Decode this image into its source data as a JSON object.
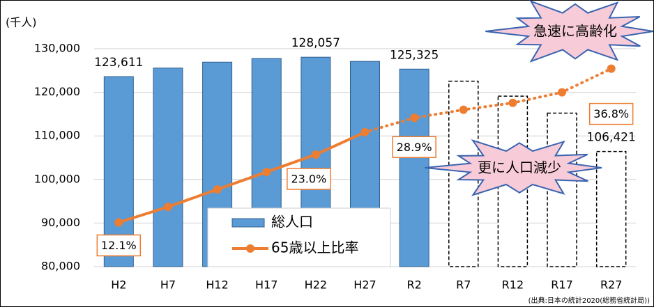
{
  "chart_data": {
    "type": "bar",
    "y_unit_label": "(千人)",
    "categories": [
      "H2",
      "H7",
      "H12",
      "H17",
      "H22",
      "H27",
      "R2",
      "R7",
      "R12",
      "R17",
      "R27"
    ],
    "series": [
      {
        "name": "総人口",
        "type": "bar",
        "color": "#5b9bd5",
        "values": [
          123611,
          125570,
          126926,
          127768,
          128057,
          127095,
          125325,
          122544,
          119125,
          115216,
          106421
        ],
        "value_labels": [
          "123,611",
          null,
          null,
          null,
          "128,057",
          null,
          "125,325",
          null,
          null,
          null,
          "106,421"
        ],
        "dashed_from": "R7"
      },
      {
        "name": "65歳以上比率",
        "type": "line",
        "axis": "y2",
        "color": "#ed7d31",
        "values": [
          12.1,
          14.6,
          17.4,
          20.2,
          23.0,
          26.6,
          28.9,
          30.2,
          31.3,
          33.0,
          36.8
        ],
        "value_labels": [
          "12.1%",
          null,
          null,
          null,
          "23.0%",
          null,
          "28.9%",
          null,
          null,
          null,
          "36.8%"
        ],
        "dashed_from": "H27"
      }
    ],
    "ylim": [
      80000,
      130000
    ],
    "yticks": [
      {
        "value": 80000,
        "label": "80,000"
      },
      {
        "value": 90000,
        "label": "90,000"
      },
      {
        "value": 100000,
        "label": "100,000"
      },
      {
        "value": 110000,
        "label": "110,000"
      },
      {
        "value": 120000,
        "label": "120,000"
      },
      {
        "value": 130000,
        "label": "130,000"
      }
    ],
    "y2lim": [
      5,
      40
    ],
    "grid": true,
    "legend": "bottom-center",
    "annotations": [
      "急速に高齢化",
      "更に人口減少"
    ],
    "source": "(出典:日本の統計2020(総務省統計局))"
  }
}
